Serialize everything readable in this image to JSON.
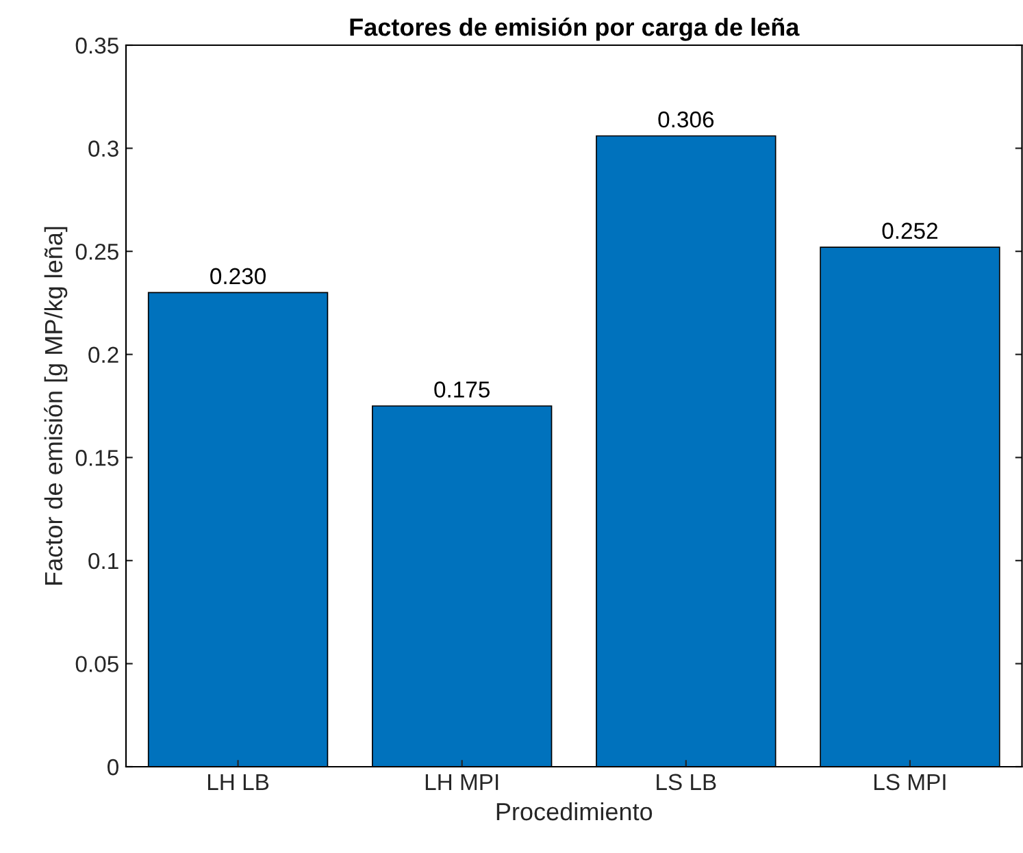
{
  "chart_data": {
    "type": "bar",
    "title": "Factores de emisión por carga de leña",
    "xlabel": "Procedimiento",
    "ylabel": "Factor de emisión [g MP/kg leña]",
    "categories": [
      "LH LB",
      "LH MPI",
      "LS LB",
      "LS MPI"
    ],
    "values": [
      0.23,
      0.175,
      0.306,
      0.252
    ],
    "value_labels": [
      "0.230",
      "0.175",
      "0.306",
      "0.252"
    ],
    "color": "#0072bd",
    "ylim": [
      0,
      0.35
    ],
    "yticks": [
      0,
      0.05,
      0.1,
      0.15,
      0.2,
      0.25,
      0.3,
      0.35
    ],
    "grid": false,
    "legend": false
  }
}
